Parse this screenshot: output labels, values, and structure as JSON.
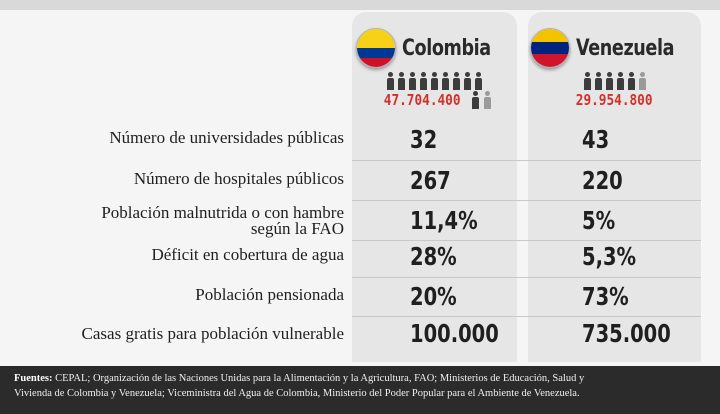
{
  "countries": [
    {
      "name": "Colombia",
      "population": "47.704.400",
      "flag_colors": [
        "#f7d117",
        "#003893",
        "#ce1126"
      ]
    },
    {
      "name": "Venezuela",
      "population": "29.954.800",
      "flag_colors": [
        "#f4c300",
        "#00247d",
        "#cf142b"
      ]
    }
  ],
  "rows": [
    {
      "label": "Número de universidades públicas",
      "colombia": "32",
      "venezuela": "43"
    },
    {
      "label": "Número de hospitales públicos",
      "colombia": "267",
      "venezuela": "220"
    },
    {
      "label_line1": "Población malnutrida o con hambre",
      "label_line2": "según la FAO",
      "colombia": "11,4%",
      "venezuela": "5%"
    },
    {
      "label": "Déficit en cobertura de agua",
      "colombia": "28%",
      "venezuela": "5,3%"
    },
    {
      "label": "Población pensionada",
      "colombia": "20%",
      "venezuela": "73%"
    },
    {
      "label": "Casas gratis para población vulnerable",
      "colombia": "100.000",
      "venezuela": "735.000"
    }
  ],
  "footer": {
    "label": "Fuentes:",
    "line1": " CEPAL; Organización de las Naciones Unidas para la Alimentación y la Agricultura, FAO; Ministerios de Educación, Salud y",
    "line2": "Vivienda de Colombia y Venezuela; Viceministra del Agua de Colombia, Ministerio del Poder Popular para el Ambiente de Venezuela."
  }
}
